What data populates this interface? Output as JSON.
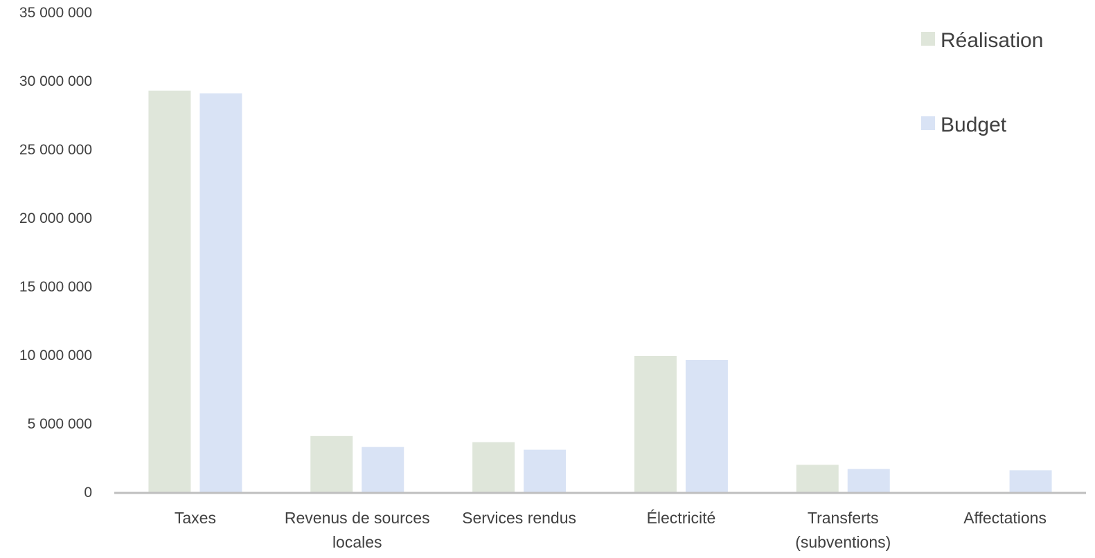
{
  "chart_data": {
    "type": "bar",
    "title": "",
    "xlabel": "",
    "ylabel": "",
    "ylim": [
      0,
      35000000
    ],
    "yticks": [
      0,
      5000000,
      10000000,
      15000000,
      20000000,
      25000000,
      30000000,
      35000000
    ],
    "ytick_labels": [
      "0",
      "5 000 000",
      "10 000 000",
      "15 000 000",
      "20 000 000",
      "25 000 000",
      "30 000 000",
      "35 000 000"
    ],
    "grid": false,
    "legend_position": "top-right",
    "categories": [
      [
        "Taxes"
      ],
      [
        "Revenus de sources",
        "locales"
      ],
      [
        "Services rendus"
      ],
      [
        "Électricité"
      ],
      [
        "Transferts",
        "(subventions)"
      ],
      [
        "Affectations"
      ]
    ],
    "series": [
      {
        "name": "Réalisation",
        "color": "#dfe6da",
        "values": [
          29300000,
          4100000,
          3650000,
          9950000,
          2000000,
          0
        ]
      },
      {
        "name": "Budget",
        "color": "#d9e3f5",
        "values": [
          29100000,
          3300000,
          3100000,
          9650000,
          1700000,
          1600000
        ]
      }
    ],
    "axis_color": "#bfbfbf"
  }
}
